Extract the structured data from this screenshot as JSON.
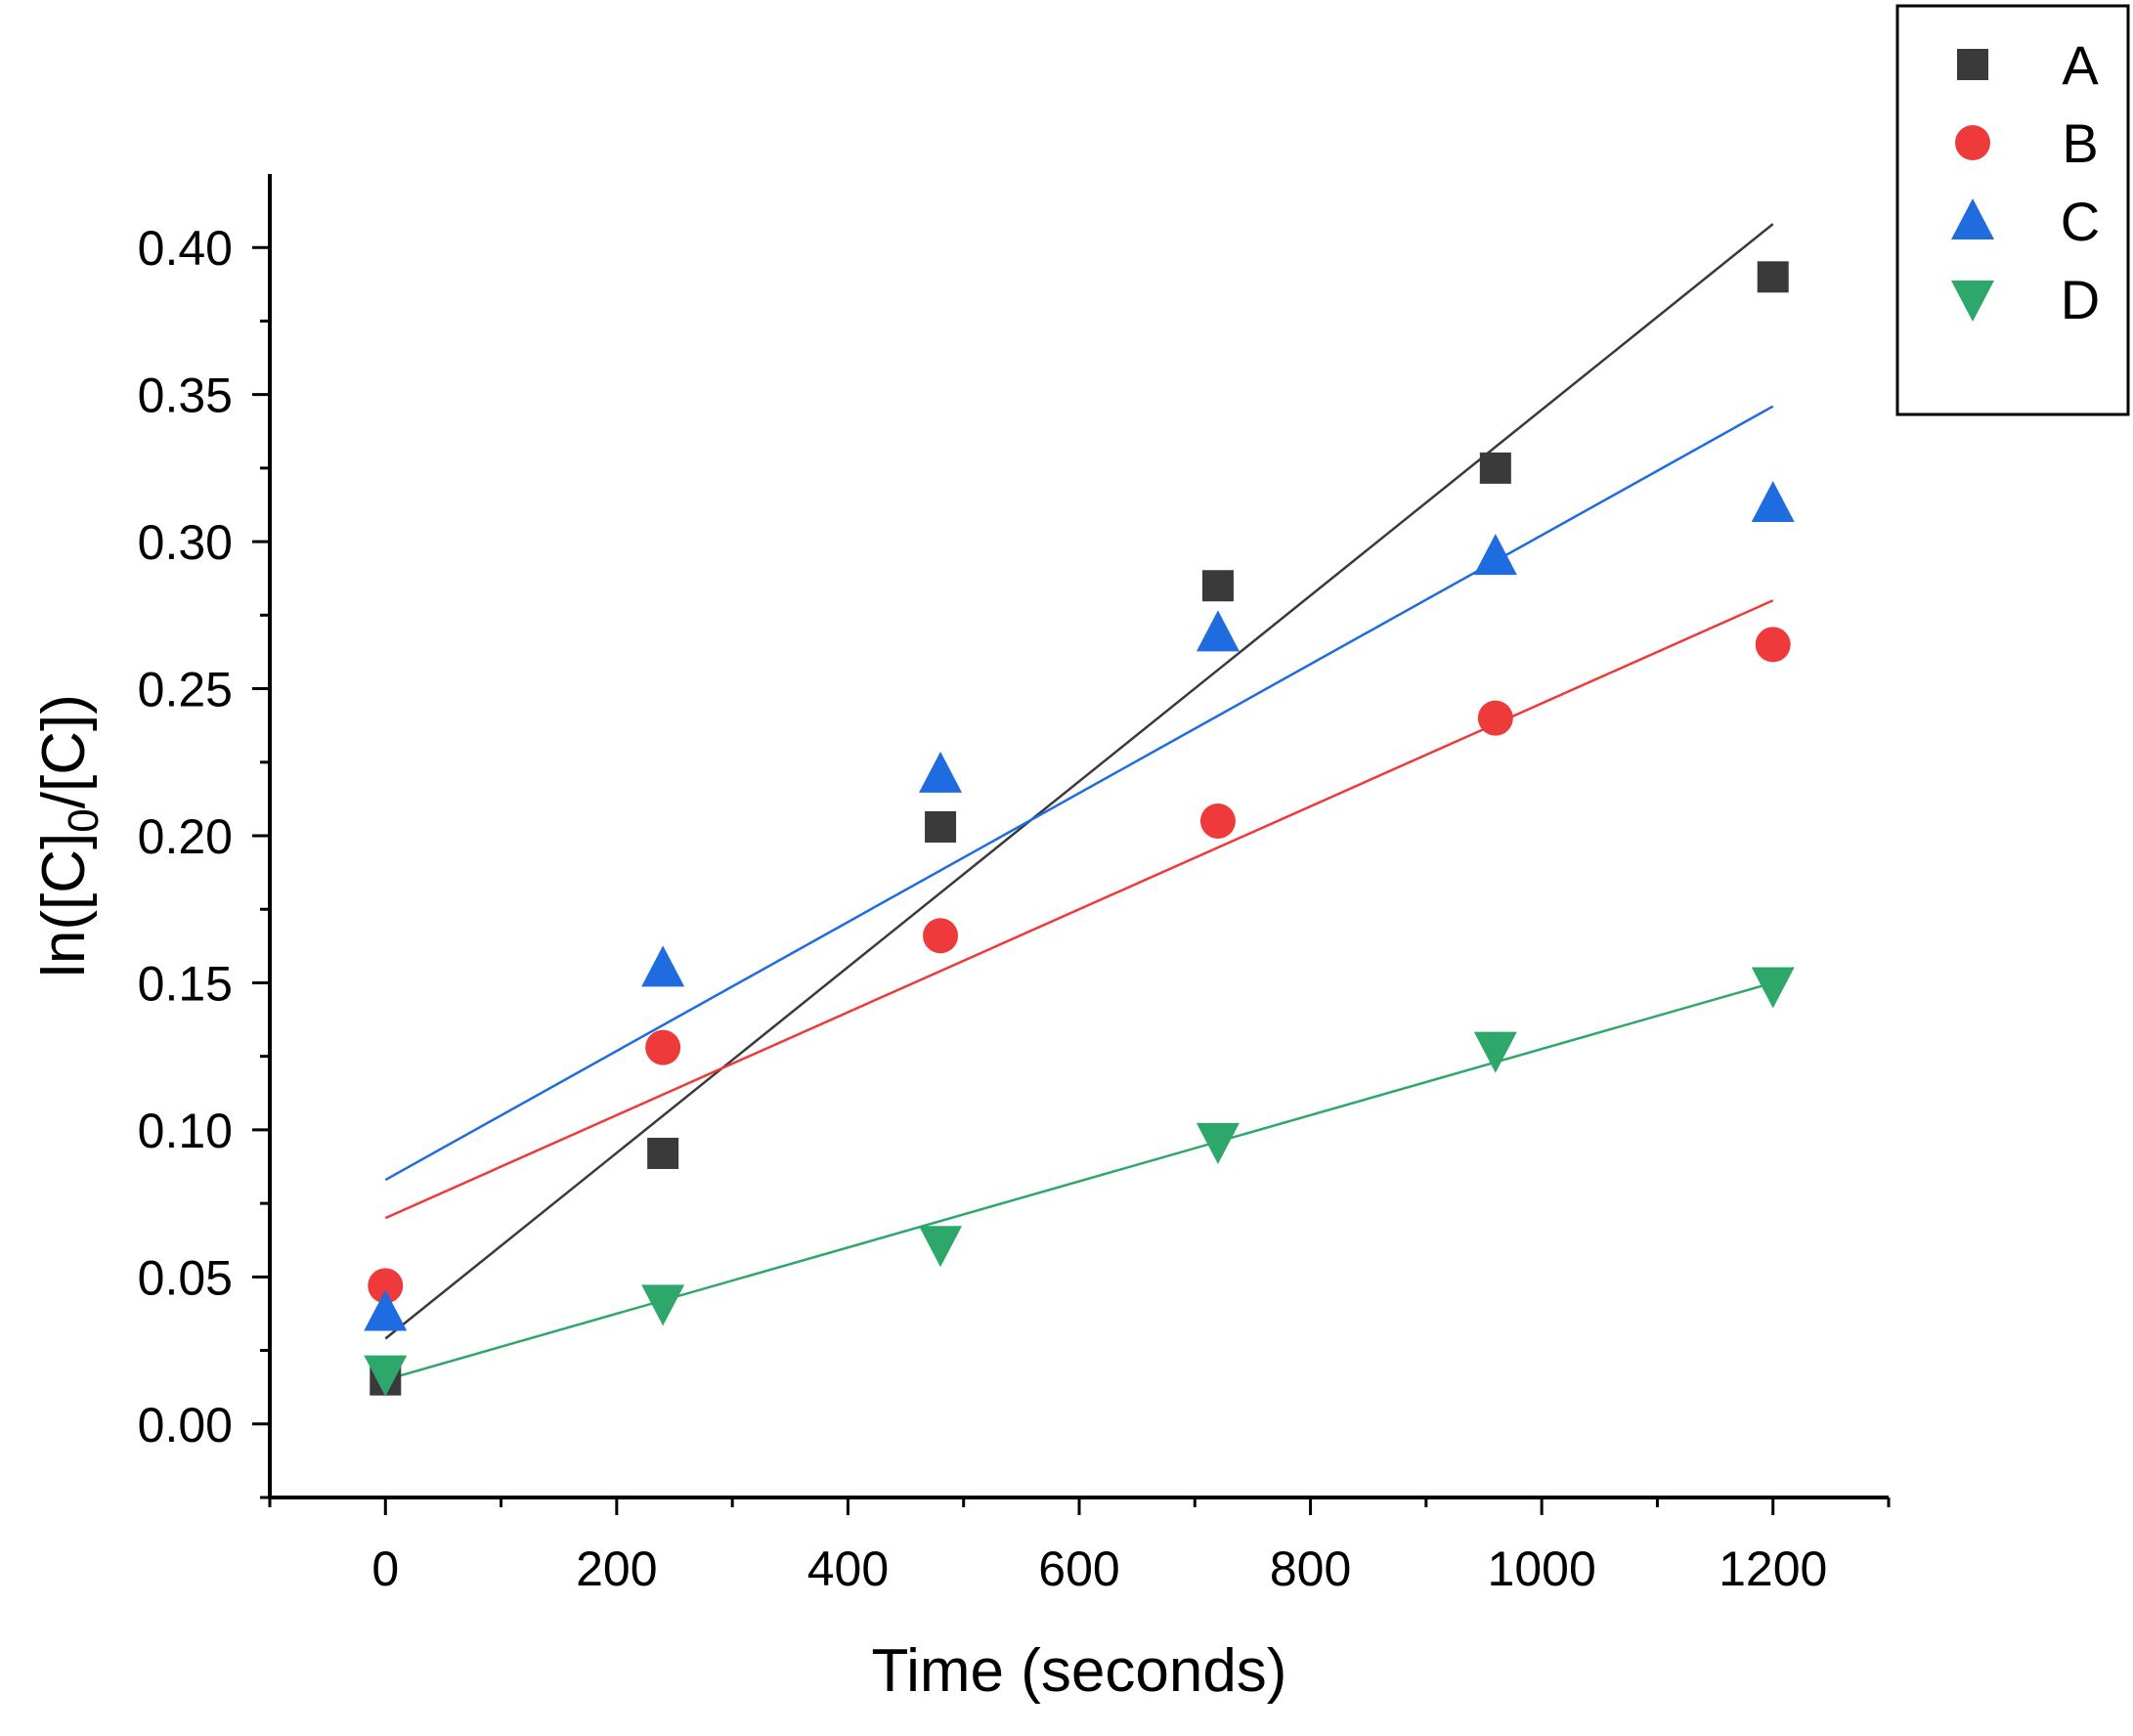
{
  "chart_data": {
    "type": "scatter",
    "title": "",
    "xlabel": "Time (seconds)",
    "ylabel": "ln([C]0/[C])",
    "ylabel_parts": {
      "pre": "ln([C]",
      "sub": "0",
      "post": "/[C])"
    },
    "xlim": [
      -100,
      1300
    ],
    "ylim": [
      -0.025,
      0.425
    ],
    "xticks": [
      0,
      200,
      400,
      600,
      800,
      1000,
      1200
    ],
    "xtick_labels": [
      "0",
      "200",
      "400",
      "600",
      "800",
      "1000",
      "1200"
    ],
    "yticks": [
      0.0,
      0.05,
      0.1,
      0.15,
      0.2,
      0.25,
      0.3,
      0.35,
      0.4
    ],
    "ytick_labels": [
      "0.00",
      "0.05",
      "0.10",
      "0.15",
      "0.20",
      "0.25",
      "0.30",
      "0.35",
      "0.40"
    ],
    "grid": false,
    "legend_position": "top-right",
    "x": [
      0,
      240,
      480,
      720,
      960,
      1200
    ],
    "series": [
      {
        "name": "A",
        "marker": "square",
        "color": "#3a3a3a",
        "values": [
          0.015,
          0.092,
          0.203,
          0.285,
          0.325,
          0.39
        ],
        "fit": {
          "x": [
            0,
            1200
          ],
          "y": [
            0.029,
            0.408
          ]
        }
      },
      {
        "name": "B",
        "marker": "circle",
        "color": "#ee3a3a",
        "values": [
          0.047,
          0.128,
          0.166,
          0.205,
          0.24,
          0.265
        ],
        "fit": {
          "x": [
            0,
            1200
          ],
          "y": [
            0.07,
            0.28
          ]
        }
      },
      {
        "name": "C",
        "marker": "triangle-up",
        "color": "#1f6be0",
        "values": [
          0.038,
          0.155,
          0.221,
          0.269,
          0.295,
          0.313
        ],
        "fit": {
          "x": [
            0,
            1200
          ],
          "y": [
            0.083,
            0.346
          ]
        }
      },
      {
        "name": "D",
        "marker": "triangle-down",
        "color": "#2da86a",
        "values": [
          0.017,
          0.041,
          0.061,
          0.096,
          0.127,
          0.149
        ],
        "fit": {
          "x": [
            0,
            1200
          ],
          "y": [
            0.015,
            0.15
          ]
        }
      }
    ]
  }
}
